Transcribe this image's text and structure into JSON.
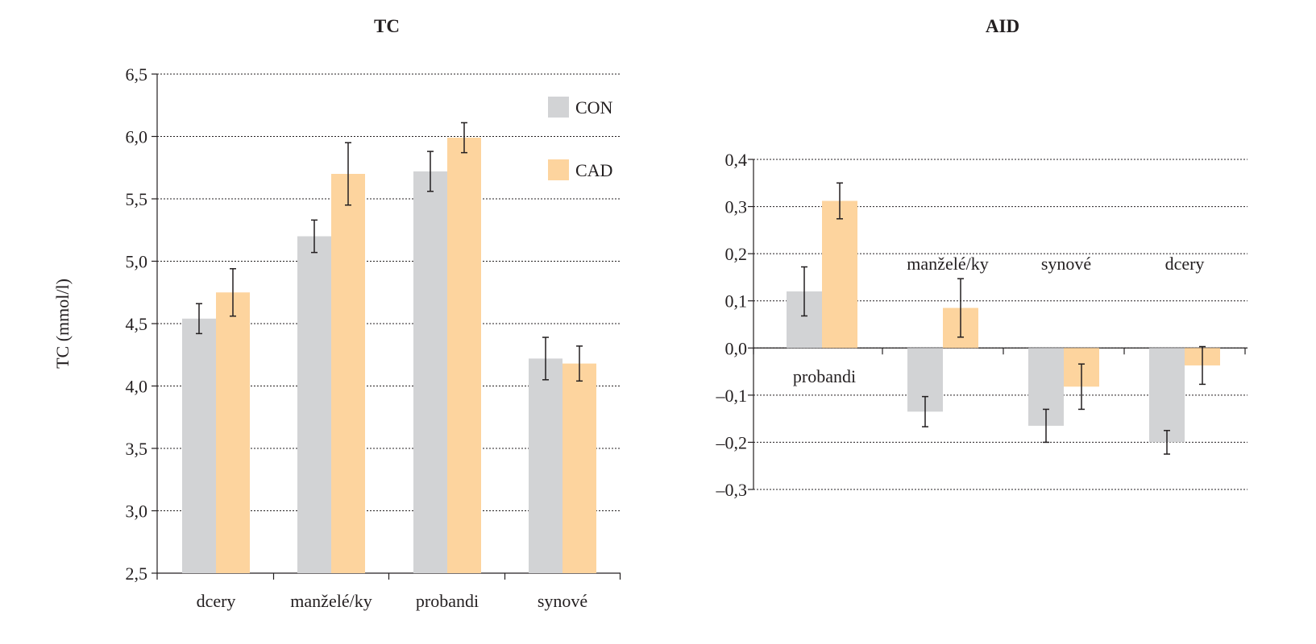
{
  "colors": {
    "CON": "#d2d3d5",
    "CAD": "#fdd49e",
    "text": "#231f20"
  },
  "chart_data": [
    {
      "type": "bar",
      "title": "TC",
      "xlabel": "",
      "ylabel": "TC (mmol/l)",
      "ylim": [
        2.5,
        6.5
      ],
      "yticks": [
        2.5,
        3.0,
        3.5,
        4.0,
        4.5,
        5.0,
        5.5,
        6.0,
        6.5
      ],
      "ytick_labels": [
        "2,5",
        "3,0",
        "3,5",
        "4,0",
        "4,5",
        "5,0",
        "5,5",
        "6,0",
        "6,5"
      ],
      "grid": true,
      "legend_position": "top-right",
      "categories": [
        "dcery",
        "manželé/ky",
        "probandi",
        "synové"
      ],
      "series": [
        {
          "name": "CON",
          "values": [
            4.54,
            5.2,
            5.72,
            4.22
          ],
          "errors": [
            0.12,
            0.13,
            0.16,
            0.17
          ]
        },
        {
          "name": "CAD",
          "values": [
            4.75,
            5.7,
            5.99,
            4.18
          ],
          "errors": [
            0.19,
            0.25,
            0.12,
            0.14
          ]
        }
      ]
    },
    {
      "type": "bar",
      "title": "AID",
      "xlabel": "",
      "ylabel": "",
      "ylim": [
        -0.3,
        0.4
      ],
      "yticks": [
        -0.3,
        -0.2,
        -0.1,
        0.0,
        0.1,
        0.2,
        0.3,
        0.4
      ],
      "ytick_labels": [
        "–0,3",
        "–0,2",
        "–0,1",
        "0,0",
        "0,1",
        "0,2",
        "0,3",
        "0,4"
      ],
      "grid": true,
      "categories": [
        "probandi",
        "manželé/ky",
        "synové",
        "dcery"
      ],
      "series": [
        {
          "name": "CON",
          "values": [
            0.12,
            -0.135,
            -0.165,
            -0.2
          ],
          "errors": [
            0.052,
            0.032,
            0.035,
            0.025
          ]
        },
        {
          "name": "CAD",
          "values": [
            0.312,
            0.085,
            -0.082,
            -0.037
          ],
          "errors": [
            0.038,
            0.062,
            0.048,
            0.04
          ]
        }
      ]
    }
  ]
}
